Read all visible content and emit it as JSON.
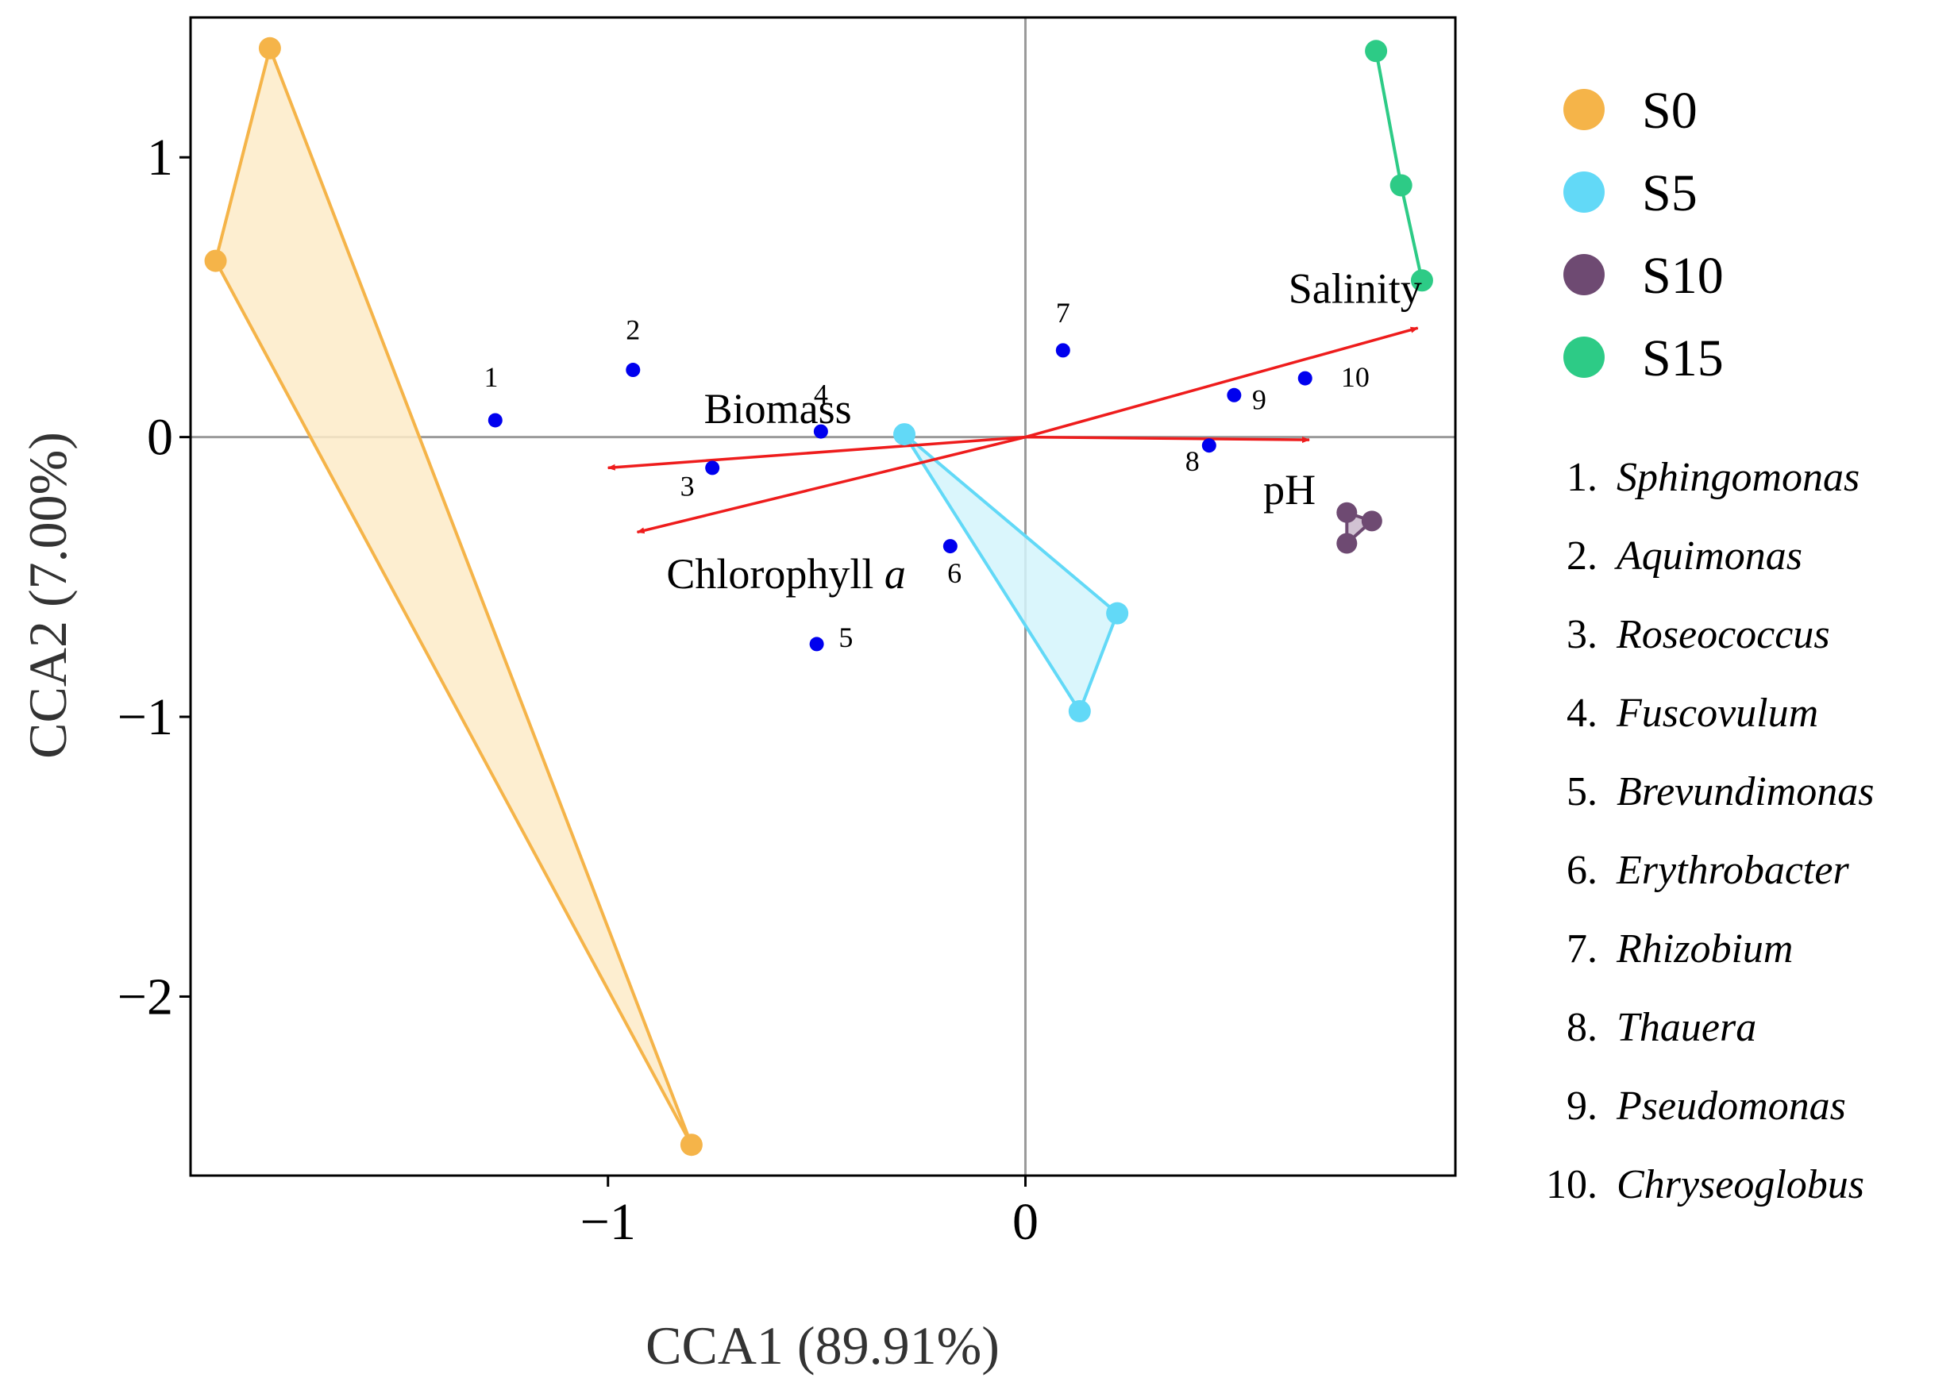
{
  "chart_data": {
    "type": "scatter",
    "subtype": "CCA ordination biplot",
    "xlabel": "CCA1 (89.91%)",
    "ylabel": "CCA2 (7.00%)",
    "xlim": [
      -2.0,
      1.03
    ],
    "ylim": [
      -2.64,
      1.5
    ],
    "xticks": [
      {
        "value": -1,
        "label": "−1"
      },
      {
        "value": 0,
        "label": "0"
      }
    ],
    "yticks": [
      {
        "value": 1,
        "label": "1"
      },
      {
        "value": 0,
        "label": "0"
      },
      {
        "value": -1,
        "label": "−1"
      },
      {
        "value": -2,
        "label": "−2"
      }
    ],
    "reference_lines": [
      0,
      0
    ],
    "groups": [
      {
        "name": "S0",
        "color": "#F5B449",
        "fill": "#FDEBC8",
        "points": [
          [
            -1.81,
            1.39
          ],
          [
            -1.94,
            0.63
          ],
          [
            -0.8,
            -2.53
          ]
        ]
      },
      {
        "name": "S5",
        "color": "#62D9F7",
        "fill": "#D4F4FC",
        "points": [
          [
            -0.29,
            0.01
          ],
          [
            0.22,
            -0.63
          ],
          [
            0.13,
            -0.98
          ]
        ]
      },
      {
        "name": "S10",
        "color": "#6E4A72",
        "fill": "#C9B7CB",
        "points": [
          [
            0.77,
            -0.27
          ],
          [
            0.83,
            -0.3
          ],
          [
            0.77,
            -0.38
          ]
        ]
      },
      {
        "name": "S15",
        "color": "#2DCB86",
        "fill": "#2DCB86",
        "points": [
          [
            0.84,
            1.38
          ],
          [
            0.9,
            0.9
          ],
          [
            0.95,
            0.56
          ]
        ]
      }
    ],
    "vectors": [
      {
        "name": "Biomass",
        "x": -1.0,
        "y": -0.11,
        "label_pos": [
          -0.77,
          0.05
        ],
        "label_parts": [
          {
            "text": "Biomass"
          }
        ]
      },
      {
        "name": "Chlorophyll a",
        "x": -0.93,
        "y": -0.34,
        "label_pos": [
          -0.86,
          -0.54
        ],
        "label_parts": [
          {
            "text": "Chlorophyll "
          },
          {
            "text": "a",
            "italic": true
          }
        ]
      },
      {
        "name": "Salinity",
        "x": 0.94,
        "y": 0.39,
        "label_pos": [
          0.63,
          0.48
        ],
        "label_parts": [
          {
            "text": "Salinity"
          }
        ]
      },
      {
        "name": "pH",
        "x": 0.68,
        "y": -0.01,
        "label_pos": [
          0.57,
          -0.24
        ],
        "label_parts": [
          {
            "text": "pH"
          }
        ]
      }
    ],
    "vector_color": "#EE1C1C",
    "species": [
      {
        "id": "1",
        "x": -1.27,
        "y": 0.06,
        "label_pos": [
          -1.28,
          0.18
        ]
      },
      {
        "id": "2",
        "x": -0.94,
        "y": 0.24,
        "label_pos": [
          -0.94,
          0.35
        ]
      },
      {
        "id": "3",
        "x": -0.75,
        "y": -0.11,
        "label_pos": [
          -0.81,
          -0.21
        ]
      },
      {
        "id": "4",
        "x": -0.49,
        "y": 0.02,
        "label_pos": [
          -0.49,
          0.12
        ]
      },
      {
        "id": "5",
        "x": -0.5,
        "y": -0.74,
        "label_pos": [
          -0.43,
          -0.75
        ]
      },
      {
        "id": "6",
        "x": -0.18,
        "y": -0.39,
        "label_pos": [
          -0.17,
          -0.52
        ]
      },
      {
        "id": "7",
        "x": 0.09,
        "y": 0.31,
        "label_pos": [
          0.09,
          0.41
        ]
      },
      {
        "id": "8",
        "x": 0.44,
        "y": -0.03,
        "label_pos": [
          0.4,
          -0.12
        ]
      },
      {
        "id": "9",
        "x": 0.5,
        "y": 0.15,
        "label_pos": [
          0.56,
          0.1
        ]
      },
      {
        "id": "10",
        "x": 0.67,
        "y": 0.21,
        "label_pos": [
          0.79,
          0.18
        ]
      }
    ],
    "species_color": "#0000EE",
    "genus_legend": [
      {
        "num": "1.",
        "name": "Sphingomonas"
      },
      {
        "num": "2.",
        "name": "Aquimonas"
      },
      {
        "num": "3.",
        "name": "Roseococcus"
      },
      {
        "num": "4.",
        "name": "Fuscovulum"
      },
      {
        "num": "5.",
        "name": "Brevundimonas"
      },
      {
        "num": "6.",
        "name": "Erythrobacter"
      },
      {
        "num": "7.",
        "name": "Rhizobium"
      },
      {
        "num": "8.",
        "name": "Thauera"
      },
      {
        "num": "9.",
        "name": "Pseudomonas"
      },
      {
        "num": "10.",
        "name": "Chryseoglobus"
      }
    ],
    "legend_position": "right"
  }
}
